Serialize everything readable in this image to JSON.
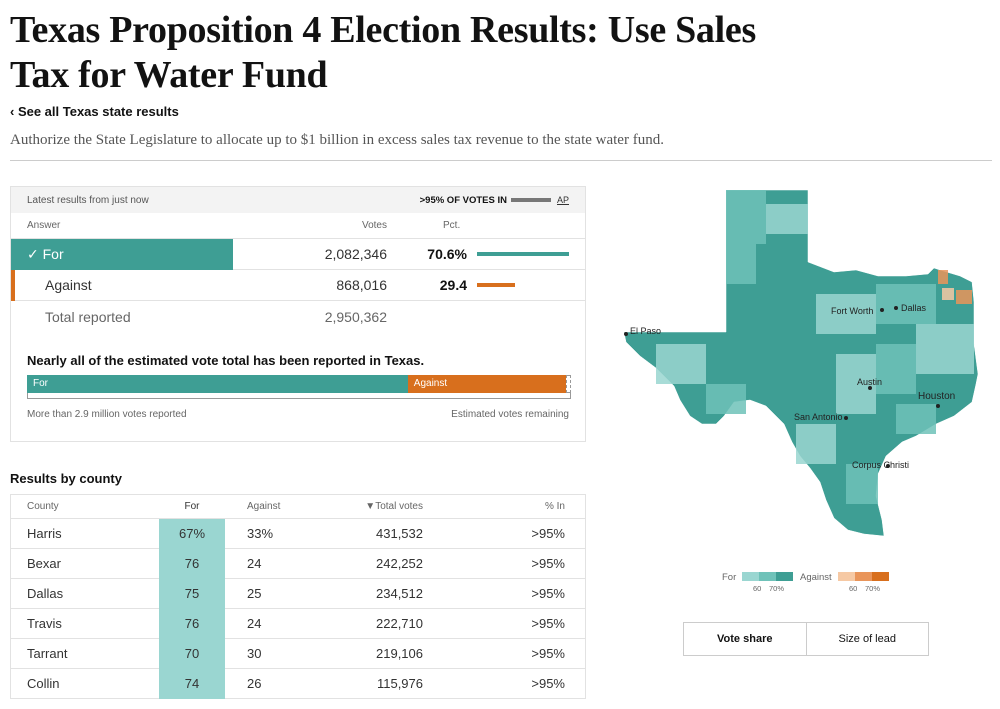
{
  "page": {
    "title": "Texas Proposition 4 Election Results: Use Sales Tax for Water Fund",
    "back_link": "‹ See all Texas state results",
    "description": "Authorize the State Legislature to allocate up to $1 billion in excess sales tax revenue to the state water fund."
  },
  "results": {
    "latest": "Latest results from just now",
    "votes_in": ">95% OF VOTES IN",
    "source": "AP",
    "col_answer": "Answer",
    "col_votes": "Votes",
    "col_pct": "Pct.",
    "rows": [
      {
        "label": "✓ For",
        "votes": "2,082,346",
        "pct": "70.6%",
        "share": 70.6,
        "color": "#3e9e94"
      },
      {
        "label": "Against",
        "votes": "868,016",
        "pct": "29.4",
        "share": 29.4,
        "color": "#d86f1d"
      }
    ],
    "total_label": "Total reported",
    "total_votes": "2,950,362"
  },
  "estimate": {
    "title": "Nearly all of the estimated vote total has been reported in Texas.",
    "for_label": "For",
    "against_label": "Against",
    "for_share": 0.7,
    "against_share": 0.29,
    "left_note": "More than 2.9 million votes reported",
    "right_note": "Estimated votes remaining"
  },
  "county": {
    "title": "Results by county",
    "headers": {
      "county": "County",
      "for": "For",
      "against": "Against",
      "total": "▼Total votes",
      "in": "% In"
    },
    "rows": [
      {
        "name": "Harris",
        "for": "67%",
        "against": "33%",
        "total": "431,532",
        "in": ">95%"
      },
      {
        "name": "Bexar",
        "for": "76",
        "against": "24",
        "total": "242,252",
        "in": ">95%"
      },
      {
        "name": "Dallas",
        "for": "75",
        "against": "25",
        "total": "234,512",
        "in": ">95%"
      },
      {
        "name": "Travis",
        "for": "76",
        "against": "24",
        "total": "222,710",
        "in": ">95%"
      },
      {
        "name": "Tarrant",
        "for": "70",
        "against": "30",
        "total": "219,106",
        "in": ">95%"
      },
      {
        "name": "Collin",
        "for": "74",
        "against": "26",
        "total": "115,976",
        "in": ">95%"
      }
    ]
  },
  "map": {
    "cities": [
      "El Paso",
      "Fort Worth",
      "Dallas",
      "Austin",
      "Houston",
      "San Antonio",
      "Corpus Christi"
    ],
    "colors": {
      "dark": "#3e9e94",
      "mid": "#6fc2b9",
      "light": "#9ad6d1",
      "orange": "#e9955a",
      "light_orange": "#f6c9a4"
    }
  },
  "legend": {
    "for_label": "For",
    "against_label": "Against",
    "ticks_for": [
      "60",
      "70%"
    ],
    "ticks_against": [
      "60",
      "70%"
    ]
  },
  "toggle": {
    "vote_share": "Vote share",
    "size_of_lead": "Size of lead"
  }
}
